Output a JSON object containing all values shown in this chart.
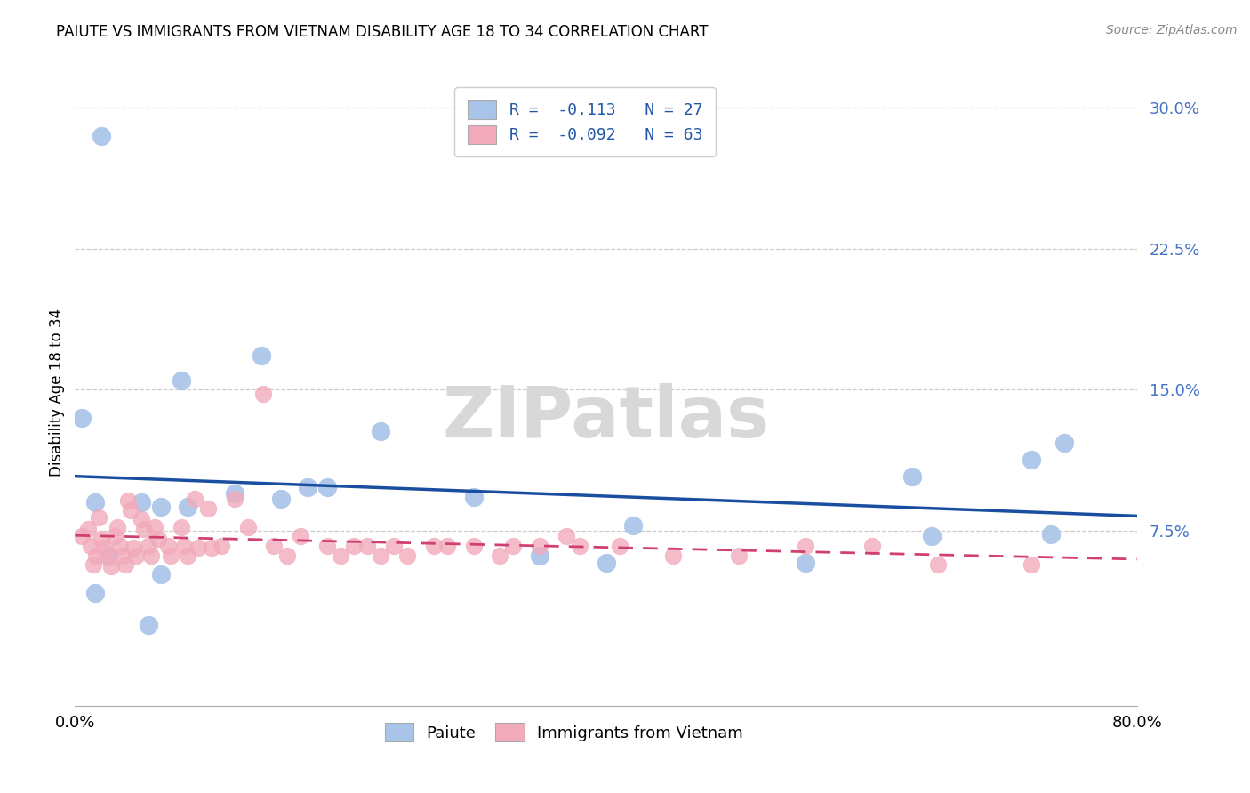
{
  "title": "PAIUTE VS IMMIGRANTS FROM VIETNAM DISABILITY AGE 18 TO 34 CORRELATION CHART",
  "source": "Source: ZipAtlas.com",
  "ylabel": "Disability Age 18 to 34",
  "legend_label1": "Paiute",
  "legend_label2": "Immigrants from Vietnam",
  "r1_text": "R =  -0.113",
  "n1_text": "N = 27",
  "r2_text": "R =  -0.092",
  "n2_text": "N = 63",
  "xlim": [
    0.0,
    0.8
  ],
  "ylim": [
    -0.018,
    0.315
  ],
  "yticks": [
    0.075,
    0.15,
    0.225,
    0.3
  ],
  "ytick_labels": [
    "7.5%",
    "15.0%",
    "22.5%",
    "30.0%"
  ],
  "xticks": [
    0.0,
    0.1,
    0.2,
    0.3,
    0.4,
    0.5,
    0.6,
    0.7,
    0.8
  ],
  "xtick_labels": [
    "0.0%",
    "",
    "",
    "",
    "",
    "",
    "",
    "",
    "80.0%"
  ],
  "color_blue": "#A8C4E8",
  "color_pink": "#F2AABB",
  "line_blue": "#1A4FA0",
  "line_pink": "#D04070",
  "watermark_color": "#D8D8D8",
  "paiute_x": [
    0.02,
    0.05,
    0.065,
    0.085,
    0.005,
    0.015,
    0.025,
    0.14,
    0.175,
    0.19,
    0.23,
    0.3,
    0.35,
    0.4,
    0.55,
    0.63,
    0.72,
    0.745,
    0.015,
    0.055,
    0.065,
    0.08,
    0.12,
    0.155,
    0.42,
    0.645,
    0.735
  ],
  "paiute_y": [
    0.285,
    0.09,
    0.088,
    0.088,
    0.135,
    0.09,
    0.062,
    0.168,
    0.098,
    0.098,
    0.128,
    0.093,
    0.062,
    0.058,
    0.058,
    0.104,
    0.113,
    0.122,
    0.042,
    0.025,
    0.052,
    0.155,
    0.095,
    0.092,
    0.078,
    0.072,
    0.073
  ],
  "vietnam_x": [
    0.005,
    0.01,
    0.012,
    0.014,
    0.016,
    0.018,
    0.02,
    0.022,
    0.025,
    0.027,
    0.03,
    0.032,
    0.034,
    0.036,
    0.038,
    0.04,
    0.042,
    0.044,
    0.046,
    0.05,
    0.052,
    0.055,
    0.057,
    0.06,
    0.063,
    0.07,
    0.072,
    0.08,
    0.082,
    0.085,
    0.09,
    0.093,
    0.1,
    0.103,
    0.11,
    0.12,
    0.13,
    0.142,
    0.15,
    0.16,
    0.17,
    0.19,
    0.2,
    0.21,
    0.22,
    0.23,
    0.24,
    0.25,
    0.27,
    0.28,
    0.3,
    0.32,
    0.33,
    0.35,
    0.37,
    0.38,
    0.41,
    0.45,
    0.5,
    0.55,
    0.6,
    0.65,
    0.72
  ],
  "vietnam_y": [
    0.072,
    0.076,
    0.067,
    0.057,
    0.062,
    0.082,
    0.071,
    0.066,
    0.061,
    0.056,
    0.072,
    0.077,
    0.067,
    0.062,
    0.057,
    0.091,
    0.086,
    0.066,
    0.062,
    0.081,
    0.076,
    0.067,
    0.062,
    0.077,
    0.071,
    0.067,
    0.062,
    0.077,
    0.067,
    0.062,
    0.092,
    0.066,
    0.087,
    0.066,
    0.067,
    0.092,
    0.077,
    0.148,
    0.067,
    0.062,
    0.072,
    0.067,
    0.062,
    0.067,
    0.067,
    0.062,
    0.067,
    0.062,
    0.067,
    0.067,
    0.067,
    0.062,
    0.067,
    0.067,
    0.072,
    0.067,
    0.067,
    0.062,
    0.062,
    0.067,
    0.067,
    0.057,
    0.057
  ]
}
